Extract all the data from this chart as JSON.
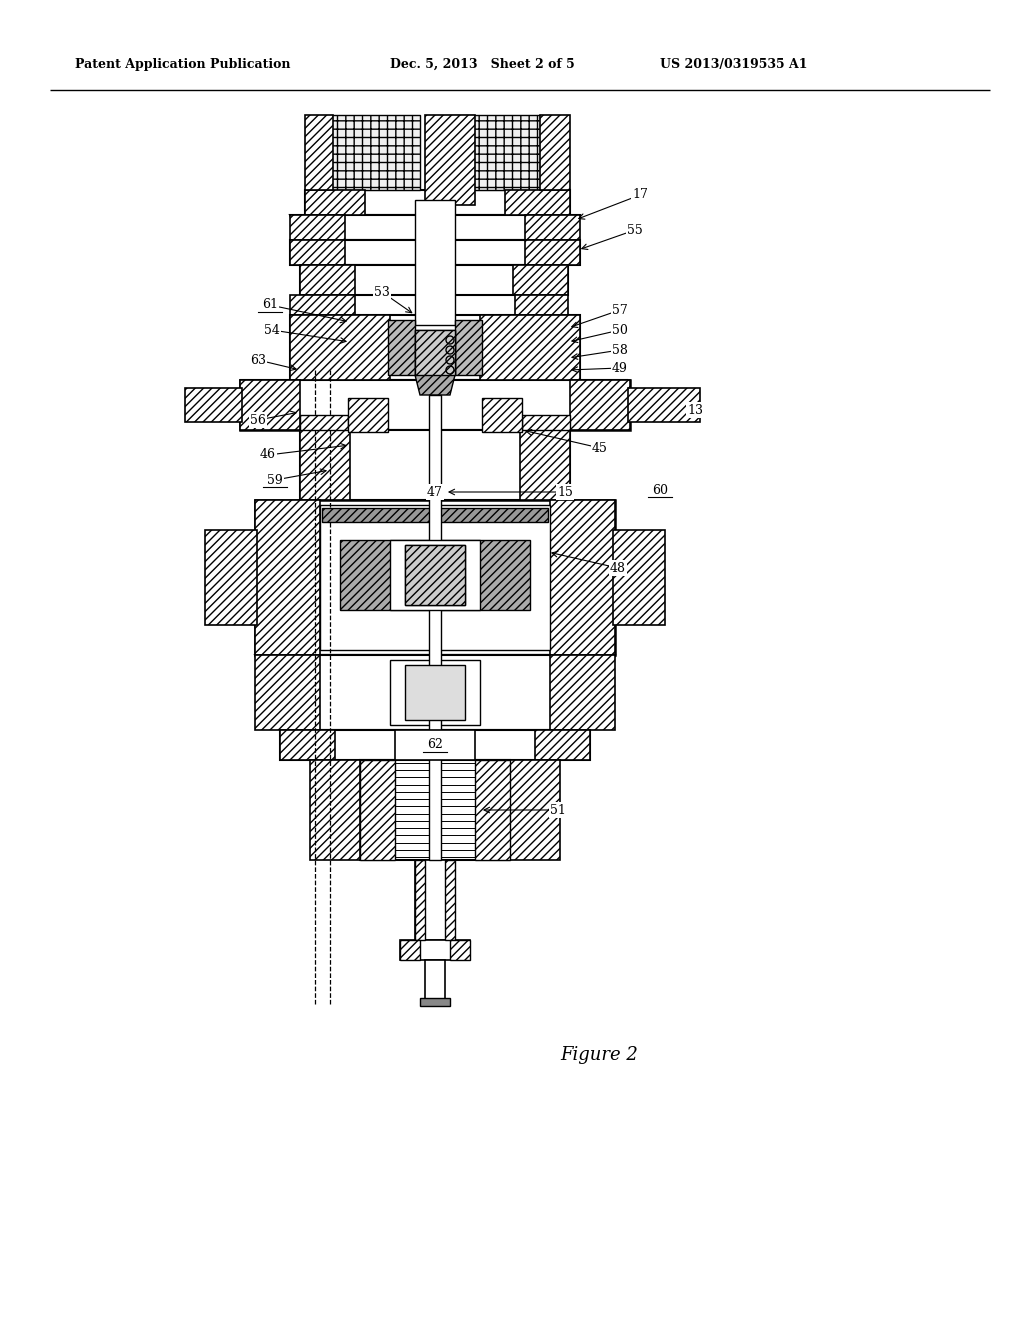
{
  "bg_color": "#ffffff",
  "line_color": "#000000",
  "header_left": "Patent Application Publication",
  "header_mid": "Dec. 5, 2013   Sheet 2 of 5",
  "header_right": "US 2013/0319535 A1",
  "figure_label": "Figure 2",
  "underlined_labels": [
    "59",
    "60",
    "61",
    "62"
  ]
}
